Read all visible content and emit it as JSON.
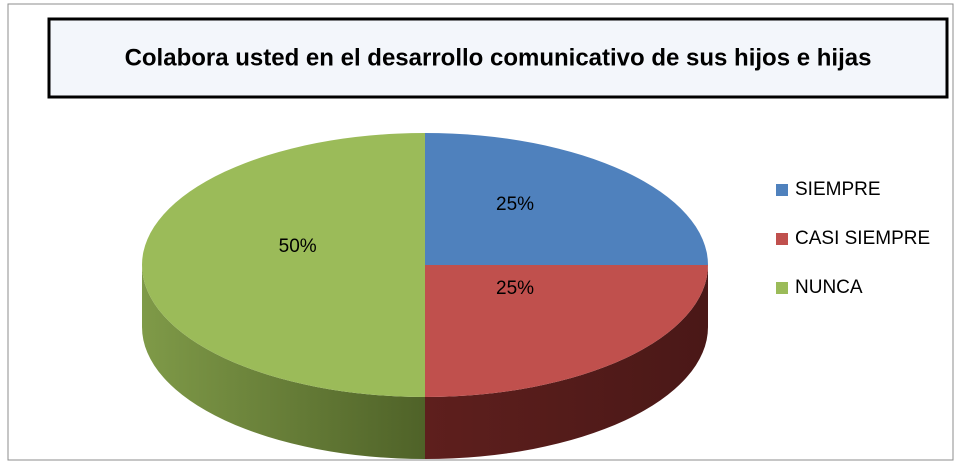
{
  "chart_data": {
    "type": "pie",
    "title": "Colabora usted en el desarrollo comunicativo de sus hijos e hijas",
    "categories": [
      "SIEMPRE",
      "CASI SIEMPRE",
      "NUNCA"
    ],
    "values": [
      25,
      25,
      50
    ],
    "value_labels": [
      "25%",
      "25%",
      "50%"
    ],
    "colors": [
      "#4f81bd",
      "#c0504d",
      "#9bbb59"
    ],
    "legend": "right"
  }
}
